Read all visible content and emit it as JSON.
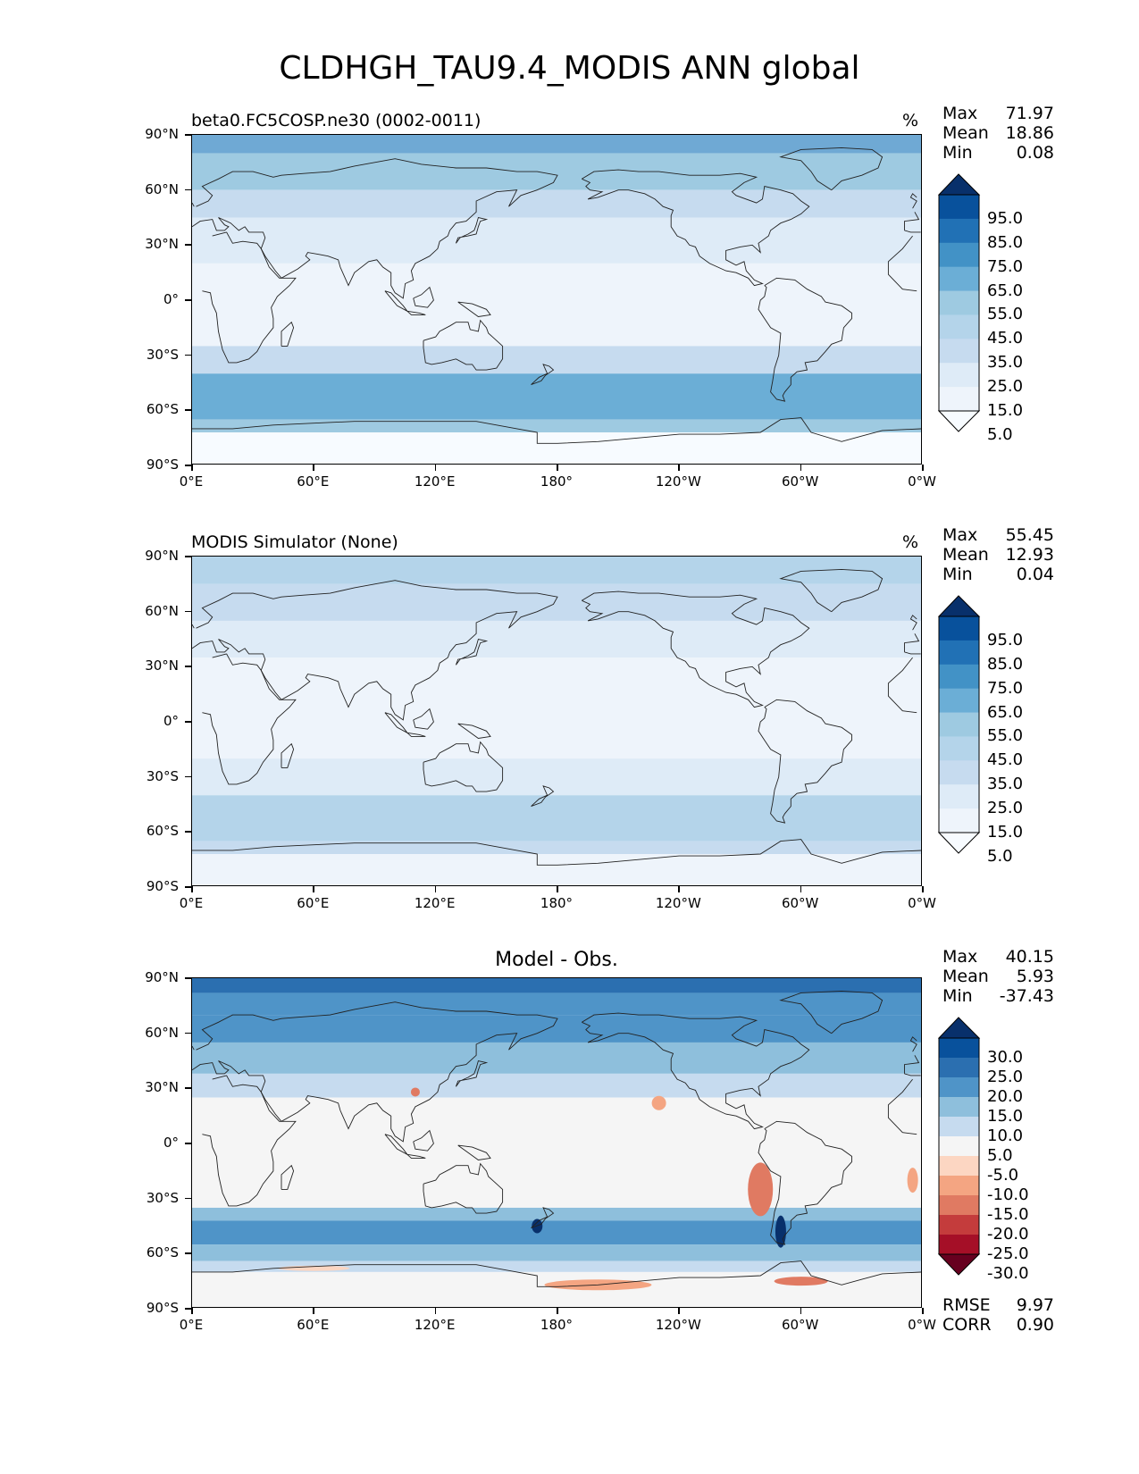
{
  "title": "CLDHGH_TAU9.4_MODIS ANN global",
  "y_ticks": [
    "90°N",
    "60°N",
    "30°N",
    "0°",
    "30°S",
    "60°S",
    "90°S"
  ],
  "x_ticks": [
    "0°E",
    "60°E",
    "120°E",
    "180°",
    "120°W",
    "60°W",
    "0°W"
  ],
  "panels": [
    {
      "label_left": "beta0.FC5COSP.ne30 (0002-0011)",
      "label_center": "",
      "unit": "%",
      "stats": [
        {
          "name": "Max",
          "value": "71.97"
        },
        {
          "name": "Mean",
          "value": "18.86"
        },
        {
          "name": "Min",
          "value": "0.08"
        }
      ],
      "colorbar_labels": [
        "95.0",
        "85.0",
        "75.0",
        "65.0",
        "55.0",
        "45.0",
        "35.0",
        "25.0",
        "15.0",
        "5.0"
      ],
      "colorbar_colors": [
        "#08306b",
        "#08519c",
        "#2171b5",
        "#4292c6",
        "#6baed6",
        "#9ecae1",
        "#b4d4ea",
        "#c6dbef",
        "#deebf7",
        "#eef4fb",
        "#f7fbff"
      ]
    },
    {
      "label_left": "MODIS Simulator (None)",
      "label_center": "",
      "unit": "%",
      "stats": [
        {
          "name": "Max",
          "value": "55.45"
        },
        {
          "name": "Mean",
          "value": "12.93"
        },
        {
          "name": "Min",
          "value": "0.04"
        }
      ],
      "colorbar_labels": [
        "95.0",
        "85.0",
        "75.0",
        "65.0",
        "55.0",
        "45.0",
        "35.0",
        "25.0",
        "15.0",
        "5.0"
      ],
      "colorbar_colors": [
        "#08306b",
        "#08519c",
        "#2171b5",
        "#4292c6",
        "#6baed6",
        "#9ecae1",
        "#b4d4ea",
        "#c6dbef",
        "#deebf7",
        "#eef4fb",
        "#f7fbff"
      ]
    },
    {
      "label_left": "",
      "label_center": "Model - Obs.",
      "unit": "",
      "stats": [
        {
          "name": "Max",
          "value": "40.15"
        },
        {
          "name": "Mean",
          "value": "5.93"
        },
        {
          "name": "Min",
          "value": "-37.43"
        }
      ],
      "colorbar_labels": [
        "30.0",
        "25.0",
        "20.0",
        "15.0",
        "10.0",
        "5.0",
        "-5.0",
        "-10.0",
        "-15.0",
        "-20.0",
        "-25.0",
        "-30.0"
      ],
      "colorbar_colors": [
        "#08306b",
        "#08519c",
        "#2b6fb0",
        "#4f94c8",
        "#8ebfdc",
        "#c6dbef",
        "#f5f5f5",
        "#fcd6c2",
        "#f4a582",
        "#e07a62",
        "#c43c3c",
        "#a50f27",
        "#67001f"
      ],
      "bottom_stats": [
        {
          "name": "RMSE",
          "value": "9.97"
        },
        {
          "name": "CORR",
          "value": "0.90"
        }
      ]
    }
  ]
}
